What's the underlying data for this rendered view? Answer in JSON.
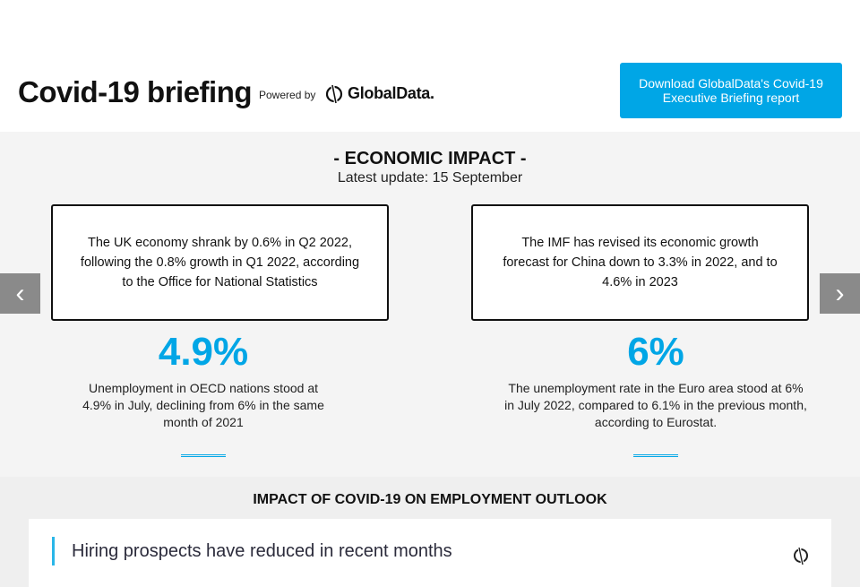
{
  "header": {
    "title": "Covid-19 briefing",
    "powered_by": "Powered by",
    "logo_text": "GlobalData.",
    "download_button": "Download GlobalData's Covid-19 Executive Briefing report"
  },
  "economic": {
    "heading": "- ECONOMIC IMPACT -",
    "update": "Latest update: 15 September",
    "boxes": [
      "The UK economy shrank by 0.6% in Q2 2022, following the 0.8% growth in Q1 2022, according to the Office for National Statistics",
      "The IMF has revised its economic growth forecast for China down to 3.3% in 2022, and to 4.6% in 2023"
    ],
    "stats": [
      {
        "value": "4.9%",
        "text": "Unemployment in OECD nations stood at 4.9% in July, declining from 6% in the same month of 2021"
      },
      {
        "value": "6%",
        "text": "The unemployment rate in the Euro area stood at 6% in July 2022, compared to 6.1% in the previous month, according to Eurostat."
      }
    ]
  },
  "employment": {
    "heading": "IMPACT OF COVID-19 ON EMPLOYMENT OUTLOOK",
    "card_title": "Hiring prospects have reduced in recent months"
  },
  "colors": {
    "accent": "#00a6e6",
    "bg": "#f4f4f4"
  }
}
